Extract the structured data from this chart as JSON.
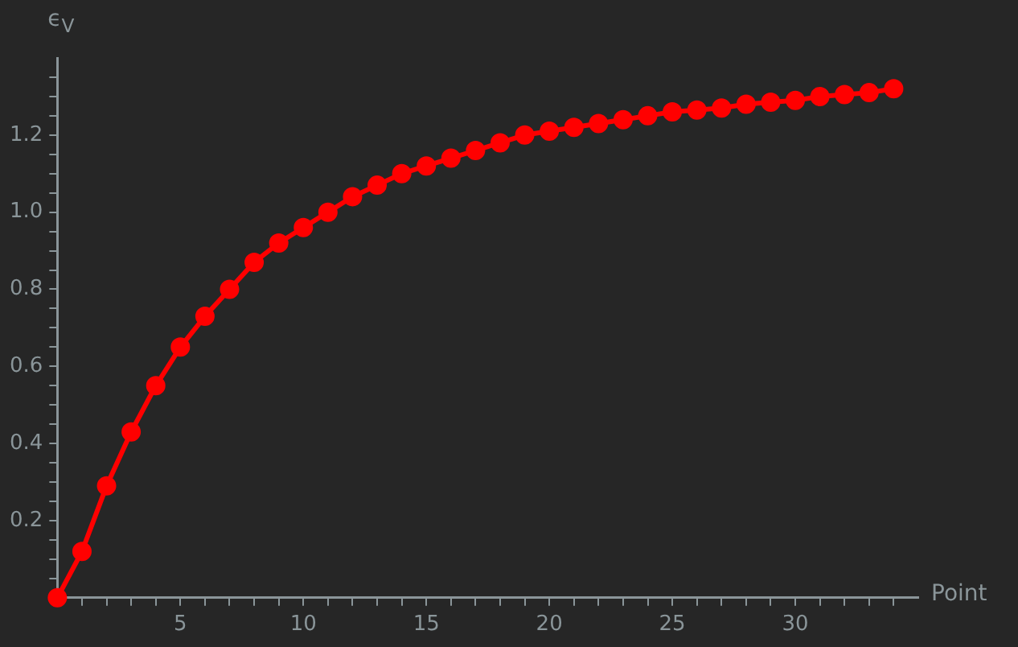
{
  "chart_data": {
    "type": "line",
    "ylabel": "ϵ$_{V}$",
    "xlabel": "Point",
    "x": [
      0,
      1,
      2,
      3,
      4,
      5,
      6,
      7,
      8,
      9,
      10,
      11,
      12,
      13,
      14,
      15,
      16,
      17,
      18,
      19,
      20,
      21,
      22,
      23,
      24,
      25,
      26,
      27,
      28,
      29,
      30,
      31,
      32,
      33,
      34
    ],
    "series": [
      {
        "color": "#ff0000",
        "values": [
          0,
          0.12,
          0.29,
          0.43,
          0.55,
          0.65,
          0.73,
          0.8,
          0.87,
          0.92,
          0.96,
          1.0,
          1.04,
          1.07,
          1.1,
          1.12,
          1.14,
          1.16,
          1.18,
          1.2,
          1.21,
          1.22,
          1.23,
          1.24,
          1.25,
          1.26,
          1.265,
          1.27,
          1.28,
          1.285,
          1.29,
          1.3,
          1.305,
          1.31,
          1.32
        ]
      }
    ],
    "xlim": [
      0,
      35
    ],
    "xticks": [
      {
        "value": 1,
        "label": null
      },
      {
        "value": 2,
        "label": null
      },
      {
        "value": 3,
        "label": null
      },
      {
        "value": 4,
        "label": null
      },
      5,
      {
        "value": 6,
        "label": null
      },
      {
        "value": 7,
        "label": null
      },
      {
        "value": 8,
        "label": null
      },
      {
        "value": 9,
        "label": null
      },
      10,
      {
        "value": 11,
        "label": null
      },
      {
        "value": 12,
        "label": null
      },
      {
        "value": 13,
        "label": null
      },
      {
        "value": 14,
        "label": null
      },
      15,
      {
        "value": 16,
        "label": null
      },
      {
        "value": 17,
        "label": null
      },
      {
        "value": 18,
        "label": null
      },
      {
        "value": 19,
        "label": null
      },
      20,
      {
        "value": 21,
        "label": null
      },
      {
        "value": 22,
        "label": null
      },
      {
        "value": 23,
        "label": null
      },
      {
        "value": 24,
        "label": null
      },
      25,
      {
        "value": 26,
        "label": null
      },
      {
        "value": 27,
        "label": null
      },
      {
        "value": 28,
        "label": null
      },
      {
        "value": 29,
        "label": null
      },
      30,
      {
        "value": 31,
        "label": null
      },
      {
        "value": 32,
        "label": null
      },
      {
        "value": 33,
        "label": null
      },
      {
        "value": 34,
        "label": null
      }
    ],
    "ylim": [
      0,
      1.4
    ],
    "yticks": [
      {
        "value": 0.05,
        "label": null
      },
      {
        "value": 0.1,
        "label": null
      },
      {
        "value": 0.15,
        "label": null
      },
      0.2,
      {
        "value": 0.25,
        "label": null
      },
      {
        "value": 0.3,
        "label": null
      },
      {
        "value": 0.35,
        "label": null
      },
      0.4,
      {
        "value": 0.45,
        "label": null
      },
      {
        "value": 0.5,
        "label": null
      },
      {
        "value": 0.55,
        "label": null
      },
      0.6,
      {
        "value": 0.65,
        "label": null
      },
      {
        "value": 0.7,
        "label": null
      },
      {
        "value": 0.75,
        "label": null
      },
      0.8,
      {
        "value": 0.85,
        "label": null
      },
      {
        "value": 0.9,
        "label": null
      },
      {
        "value": 0.95,
        "label": null
      },
      {
        "value": 1,
        "label": "1.0"
      },
      {
        "value": 1.05,
        "label": null
      },
      {
        "value": 1.1,
        "label": null
      },
      {
        "value": 1.15,
        "label": null
      },
      1.2,
      {
        "value": 1.25,
        "label": null
      },
      {
        "value": 1.3,
        "label": null
      },
      {
        "value": 1.35,
        "label": null
      }
    ],
    "grid": false,
    "legend": false,
    "marker": "circle",
    "line_style": "solid"
  }
}
